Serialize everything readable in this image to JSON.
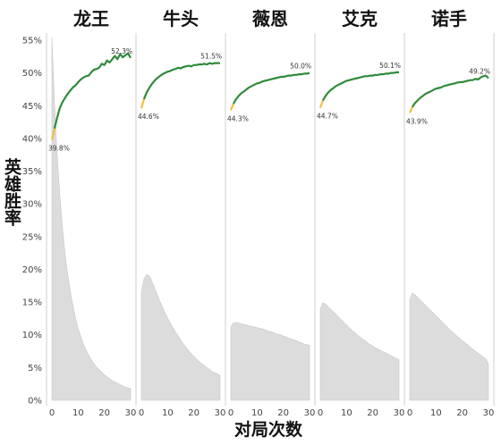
{
  "chart_data": {
    "type": "area",
    "ylabel": "英雄胜率",
    "xlabel": "对局次数",
    "ylim": [
      0,
      55
    ],
    "xlim": [
      0,
      30
    ],
    "y_ticks": [
      "0%",
      "5%",
      "10%",
      "15%",
      "20%",
      "25%",
      "30%",
      "35%",
      "40%",
      "45%",
      "50%",
      "55%"
    ],
    "y_tick_values": [
      0,
      5,
      10,
      15,
      20,
      25,
      30,
      35,
      40,
      45,
      50,
      55
    ],
    "x_ticks": [
      "0",
      "10",
      "20",
      "30"
    ],
    "x_tick_values": [
      0,
      10,
      20,
      30
    ],
    "colors": {
      "win_line": "#2e8b3a",
      "win_line_start": "#f0c040",
      "area_fill": "#dcdcdc",
      "panel_divider": "#cfcfcf"
    },
    "panels": [
      {
        "hero": "龙王",
        "start_label": "39.8%",
        "end_label": "52.3%",
        "winrate": {
          "x": [
            0,
            1,
            2,
            3,
            4,
            5,
            6,
            7,
            8,
            9,
            10,
            11,
            12,
            13,
            14,
            15,
            16,
            17,
            18,
            19,
            20,
            21,
            22,
            23,
            24,
            25,
            26,
            27,
            28,
            29,
            30
          ],
          "y": [
            39.8,
            41.5,
            43.2,
            44.6,
            45.5,
            46.2,
            46.8,
            47.3,
            47.8,
            48.1,
            48.6,
            49.0,
            49.3,
            49.5,
            49.6,
            50.1,
            50.5,
            50.6,
            50.8,
            51.4,
            51.2,
            51.9,
            51.6,
            52.1,
            52.6,
            52.1,
            52.9,
            52.4,
            52.7,
            53.0,
            52.3
          ]
        },
        "games": {
          "x": [
            0,
            1,
            2,
            3,
            4,
            5,
            6,
            7,
            8,
            9,
            10,
            11,
            12,
            13,
            14,
            15,
            16,
            17,
            18,
            19,
            20,
            21,
            22,
            23,
            24,
            25,
            26,
            27,
            28,
            29,
            30
          ],
          "y": [
            55.5,
            45.5,
            37.5,
            31.5,
            26.5,
            22.5,
            19.3,
            16.7,
            14.5,
            12.6,
            11.0,
            9.7,
            8.6,
            7.7,
            6.9,
            6.2,
            5.6,
            5.1,
            4.7,
            4.3,
            3.9,
            3.6,
            3.3,
            3.0,
            2.8,
            2.6,
            2.4,
            2.2,
            2.0,
            1.9,
            1.8
          ]
        }
      },
      {
        "hero": "牛头",
        "start_label": "44.6%",
        "end_label": "51.5%",
        "winrate": {
          "x": [
            0,
            1,
            2,
            3,
            4,
            5,
            6,
            7,
            8,
            9,
            10,
            11,
            12,
            13,
            14,
            15,
            16,
            17,
            18,
            19,
            20,
            21,
            22,
            23,
            24,
            25,
            26,
            27,
            28,
            29,
            30
          ],
          "y": [
            44.6,
            46.0,
            47.0,
            47.7,
            48.3,
            48.8,
            49.2,
            49.5,
            49.8,
            50.0,
            50.2,
            50.3,
            50.5,
            50.6,
            50.8,
            50.7,
            50.9,
            51.0,
            51.1,
            51.0,
            51.2,
            51.2,
            51.3,
            51.3,
            51.4,
            51.3,
            51.5,
            51.4,
            51.5,
            51.5,
            51.5
          ]
        },
        "games": {
          "x": [
            0,
            1,
            2,
            3,
            4,
            5,
            6,
            7,
            8,
            9,
            10,
            11,
            12,
            13,
            14,
            15,
            16,
            17,
            18,
            19,
            20,
            21,
            22,
            23,
            24,
            25,
            26,
            27,
            28,
            29,
            30
          ],
          "y": [
            16.5,
            18.5,
            19.2,
            19.0,
            18.2,
            17.2,
            16.2,
            15.2,
            14.3,
            13.4,
            12.6,
            11.8,
            11.1,
            10.4,
            9.8,
            9.2,
            8.6,
            8.1,
            7.6,
            7.1,
            6.7,
            6.3,
            5.9,
            5.6,
            5.3,
            5.0,
            4.7,
            4.4,
            4.2,
            4.0,
            3.8
          ]
        }
      },
      {
        "hero": "薇恩",
        "start_label": "44.3%",
        "end_label": "50.0%",
        "winrate": {
          "x": [
            0,
            1,
            2,
            3,
            4,
            5,
            6,
            7,
            8,
            9,
            10,
            11,
            12,
            13,
            14,
            15,
            16,
            17,
            18,
            19,
            20,
            21,
            22,
            23,
            24,
            25,
            26,
            27,
            28,
            29,
            30
          ],
          "y": [
            44.3,
            45.3,
            46.0,
            46.5,
            46.9,
            47.2,
            47.5,
            47.8,
            48.0,
            48.2,
            48.4,
            48.5,
            48.7,
            48.8,
            48.9,
            49.0,
            49.1,
            49.2,
            49.3,
            49.4,
            49.4,
            49.5,
            49.6,
            49.6,
            49.7,
            49.7,
            49.8,
            49.8,
            49.9,
            49.9,
            50.0
          ]
        },
        "games": {
          "x": [
            0,
            1,
            2,
            3,
            4,
            5,
            6,
            7,
            8,
            9,
            10,
            11,
            12,
            13,
            14,
            15,
            16,
            17,
            18,
            19,
            20,
            21,
            22,
            23,
            24,
            25,
            26,
            27,
            28,
            29,
            30
          ],
          "y": [
            11.2,
            11.8,
            11.9,
            11.8,
            11.7,
            11.6,
            11.5,
            11.4,
            11.3,
            11.2,
            11.1,
            11.0,
            10.9,
            10.8,
            10.6,
            10.5,
            10.4,
            10.2,
            10.1,
            10.0,
            9.8,
            9.7,
            9.5,
            9.4,
            9.2,
            9.1,
            8.9,
            8.8,
            8.6,
            8.5,
            8.4
          ]
        }
      },
      {
        "hero": "艾克",
        "start_label": "44.7%",
        "end_label": "50.1%",
        "winrate": {
          "x": [
            0,
            1,
            2,
            3,
            4,
            5,
            6,
            7,
            8,
            9,
            10,
            11,
            12,
            13,
            14,
            15,
            16,
            17,
            18,
            19,
            20,
            21,
            22,
            23,
            24,
            25,
            26,
            27,
            28,
            29,
            30
          ],
          "y": [
            44.7,
            45.8,
            46.5,
            47.0,
            47.4,
            47.7,
            48.0,
            48.2,
            48.4,
            48.6,
            48.8,
            48.9,
            49.0,
            49.1,
            49.2,
            49.3,
            49.4,
            49.5,
            49.5,
            49.6,
            49.6,
            49.7,
            49.7,
            49.8,
            49.8,
            49.9,
            49.9,
            50.0,
            50.0,
            50.1,
            50.1
          ]
        },
        "games": {
          "x": [
            0,
            1,
            2,
            3,
            4,
            5,
            6,
            7,
            8,
            9,
            10,
            11,
            12,
            13,
            14,
            15,
            16,
            17,
            18,
            19,
            20,
            21,
            22,
            23,
            24,
            25,
            26,
            27,
            28,
            29,
            30
          ],
          "y": [
            14.0,
            14.9,
            14.7,
            14.3,
            13.9,
            13.5,
            13.1,
            12.7,
            12.3,
            11.9,
            11.5,
            11.1,
            10.7,
            10.4,
            10.0,
            9.7,
            9.4,
            9.1,
            8.8,
            8.5,
            8.3,
            8.0,
            7.8,
            7.6,
            7.4,
            7.2,
            7.0,
            6.8,
            6.6,
            6.4,
            6.2
          ]
        }
      },
      {
        "hero": "诺手",
        "start_label": "43.9%",
        "end_label": "49.2%",
        "winrate": {
          "x": [
            0,
            1,
            2,
            3,
            4,
            5,
            6,
            7,
            8,
            9,
            10,
            11,
            12,
            13,
            14,
            15,
            16,
            17,
            18,
            19,
            20,
            21,
            22,
            23,
            24,
            25,
            26,
            27,
            28,
            29,
            30
          ],
          "y": [
            43.9,
            44.8,
            45.4,
            45.8,
            46.2,
            46.5,
            46.8,
            47.0,
            47.2,
            47.4,
            47.6,
            47.7,
            47.8,
            48.0,
            48.1,
            48.2,
            48.3,
            48.4,
            48.5,
            48.6,
            48.6,
            48.7,
            48.8,
            48.9,
            48.9,
            49.1,
            49.0,
            49.3,
            49.5,
            49.6,
            49.2
          ]
        },
        "games": {
          "x": [
            0,
            1,
            2,
            3,
            4,
            5,
            6,
            7,
            8,
            9,
            10,
            11,
            12,
            13,
            14,
            15,
            16,
            17,
            18,
            19,
            20,
            21,
            22,
            23,
            24,
            25,
            26,
            27,
            28,
            29,
            30
          ],
          "y": [
            15.4,
            16.4,
            16.1,
            15.7,
            15.3,
            14.9,
            14.5,
            14.1,
            13.7,
            13.3,
            12.9,
            12.5,
            12.1,
            11.7,
            11.3,
            10.9,
            10.5,
            10.2,
            9.8,
            9.5,
            9.1,
            8.8,
            8.5,
            8.1,
            7.8,
            7.5,
            7.2,
            6.9,
            6.6,
            6.3,
            5.5
          ]
        }
      }
    ]
  }
}
